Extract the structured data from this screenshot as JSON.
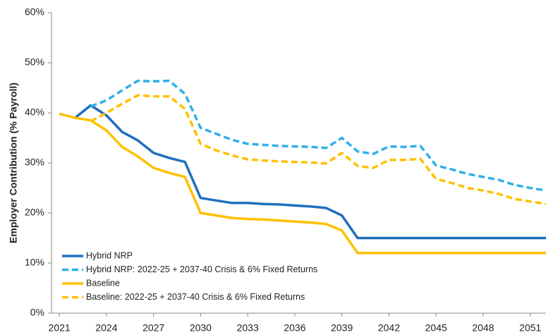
{
  "chart_data": {
    "type": "line",
    "y_label": "Employer Contribution (% Payroll)",
    "x": [
      2021,
      2022,
      2023,
      2024,
      2025,
      2026,
      2027,
      2028,
      2029,
      2030,
      2031,
      2032,
      2033,
      2034,
      2035,
      2036,
      2037,
      2038,
      2039,
      2040,
      2041,
      2042,
      2043,
      2044,
      2045,
      2046,
      2047,
      2048,
      2049,
      2050,
      2051,
      2052
    ],
    "xlim": [
      2020.5,
      2052
    ],
    "xticks": [
      2021,
      2024,
      2027,
      2030,
      2033,
      2036,
      2039,
      2042,
      2045,
      2048,
      2051
    ],
    "ylim": [
      0,
      60
    ],
    "yticks": [
      {
        "value": 0,
        "label": "0%"
      },
      {
        "value": 10,
        "label": "10%"
      },
      {
        "value": 20,
        "label": "20%"
      },
      {
        "value": 30,
        "label": "30%"
      },
      {
        "value": 40,
        "label": "40%"
      },
      {
        "value": 50,
        "label": "50%"
      },
      {
        "value": 60,
        "label": "60%"
      }
    ],
    "grid": false,
    "legend": "lower-left",
    "series": [
      {
        "name": "Hybrid NRP",
        "color": "#1f6fbf",
        "dashed": false,
        "values": [
          null,
          39,
          41.5,
          39.5,
          36.2,
          34.5,
          32,
          31,
          30.2,
          23,
          22.5,
          22,
          22,
          21.8,
          21.7,
          21.5,
          21.3,
          21,
          19.5,
          15,
          15,
          15,
          15,
          15,
          15,
          15,
          15,
          15,
          15,
          15,
          15,
          15
        ]
      },
      {
        "name": "Hybrid NRP: 2022-25 + 2037-40 Crisis & 6% Fixed Returns",
        "color": "#2fb0ea",
        "dashed": true,
        "values": [
          null,
          null,
          41.3,
          42.5,
          44.5,
          46.4,
          46.3,
          46.4,
          43.8,
          37,
          35.8,
          34.6,
          33.8,
          33.6,
          33.4,
          33.3,
          33.2,
          33,
          35,
          32.3,
          31.8,
          33.3,
          33.2,
          33.4,
          29.5,
          28.7,
          27.8,
          27.2,
          26.6,
          25.6,
          25,
          24.5
        ]
      },
      {
        "name": "Baseline",
        "color": "#ffc000",
        "dashed": false,
        "values": [
          39.8,
          39,
          38.5,
          36.5,
          33.2,
          31.3,
          29,
          28,
          27.2,
          20,
          19.5,
          19,
          18.8,
          18.7,
          18.5,
          18.3,
          18.1,
          17.8,
          16.5,
          12,
          12,
          12,
          12,
          12,
          12,
          12,
          12,
          12,
          12,
          12,
          12,
          12
        ]
      },
      {
        "name": "Baseline: 2022-25 + 2037-40 Crisis & 6% Fixed Returns",
        "color": "#ffc000",
        "dashed": true,
        "values": [
          null,
          null,
          38.3,
          40,
          41.8,
          43.5,
          43.3,
          43.3,
          40.8,
          33.8,
          32.5,
          31.5,
          30.7,
          30.5,
          30.3,
          30.2,
          30.1,
          29.9,
          32,
          29.4,
          29,
          30.6,
          30.6,
          30.8,
          26.8,
          26,
          25,
          24.5,
          23.8,
          22.8,
          22.3,
          21.8
        ]
      }
    ]
  }
}
